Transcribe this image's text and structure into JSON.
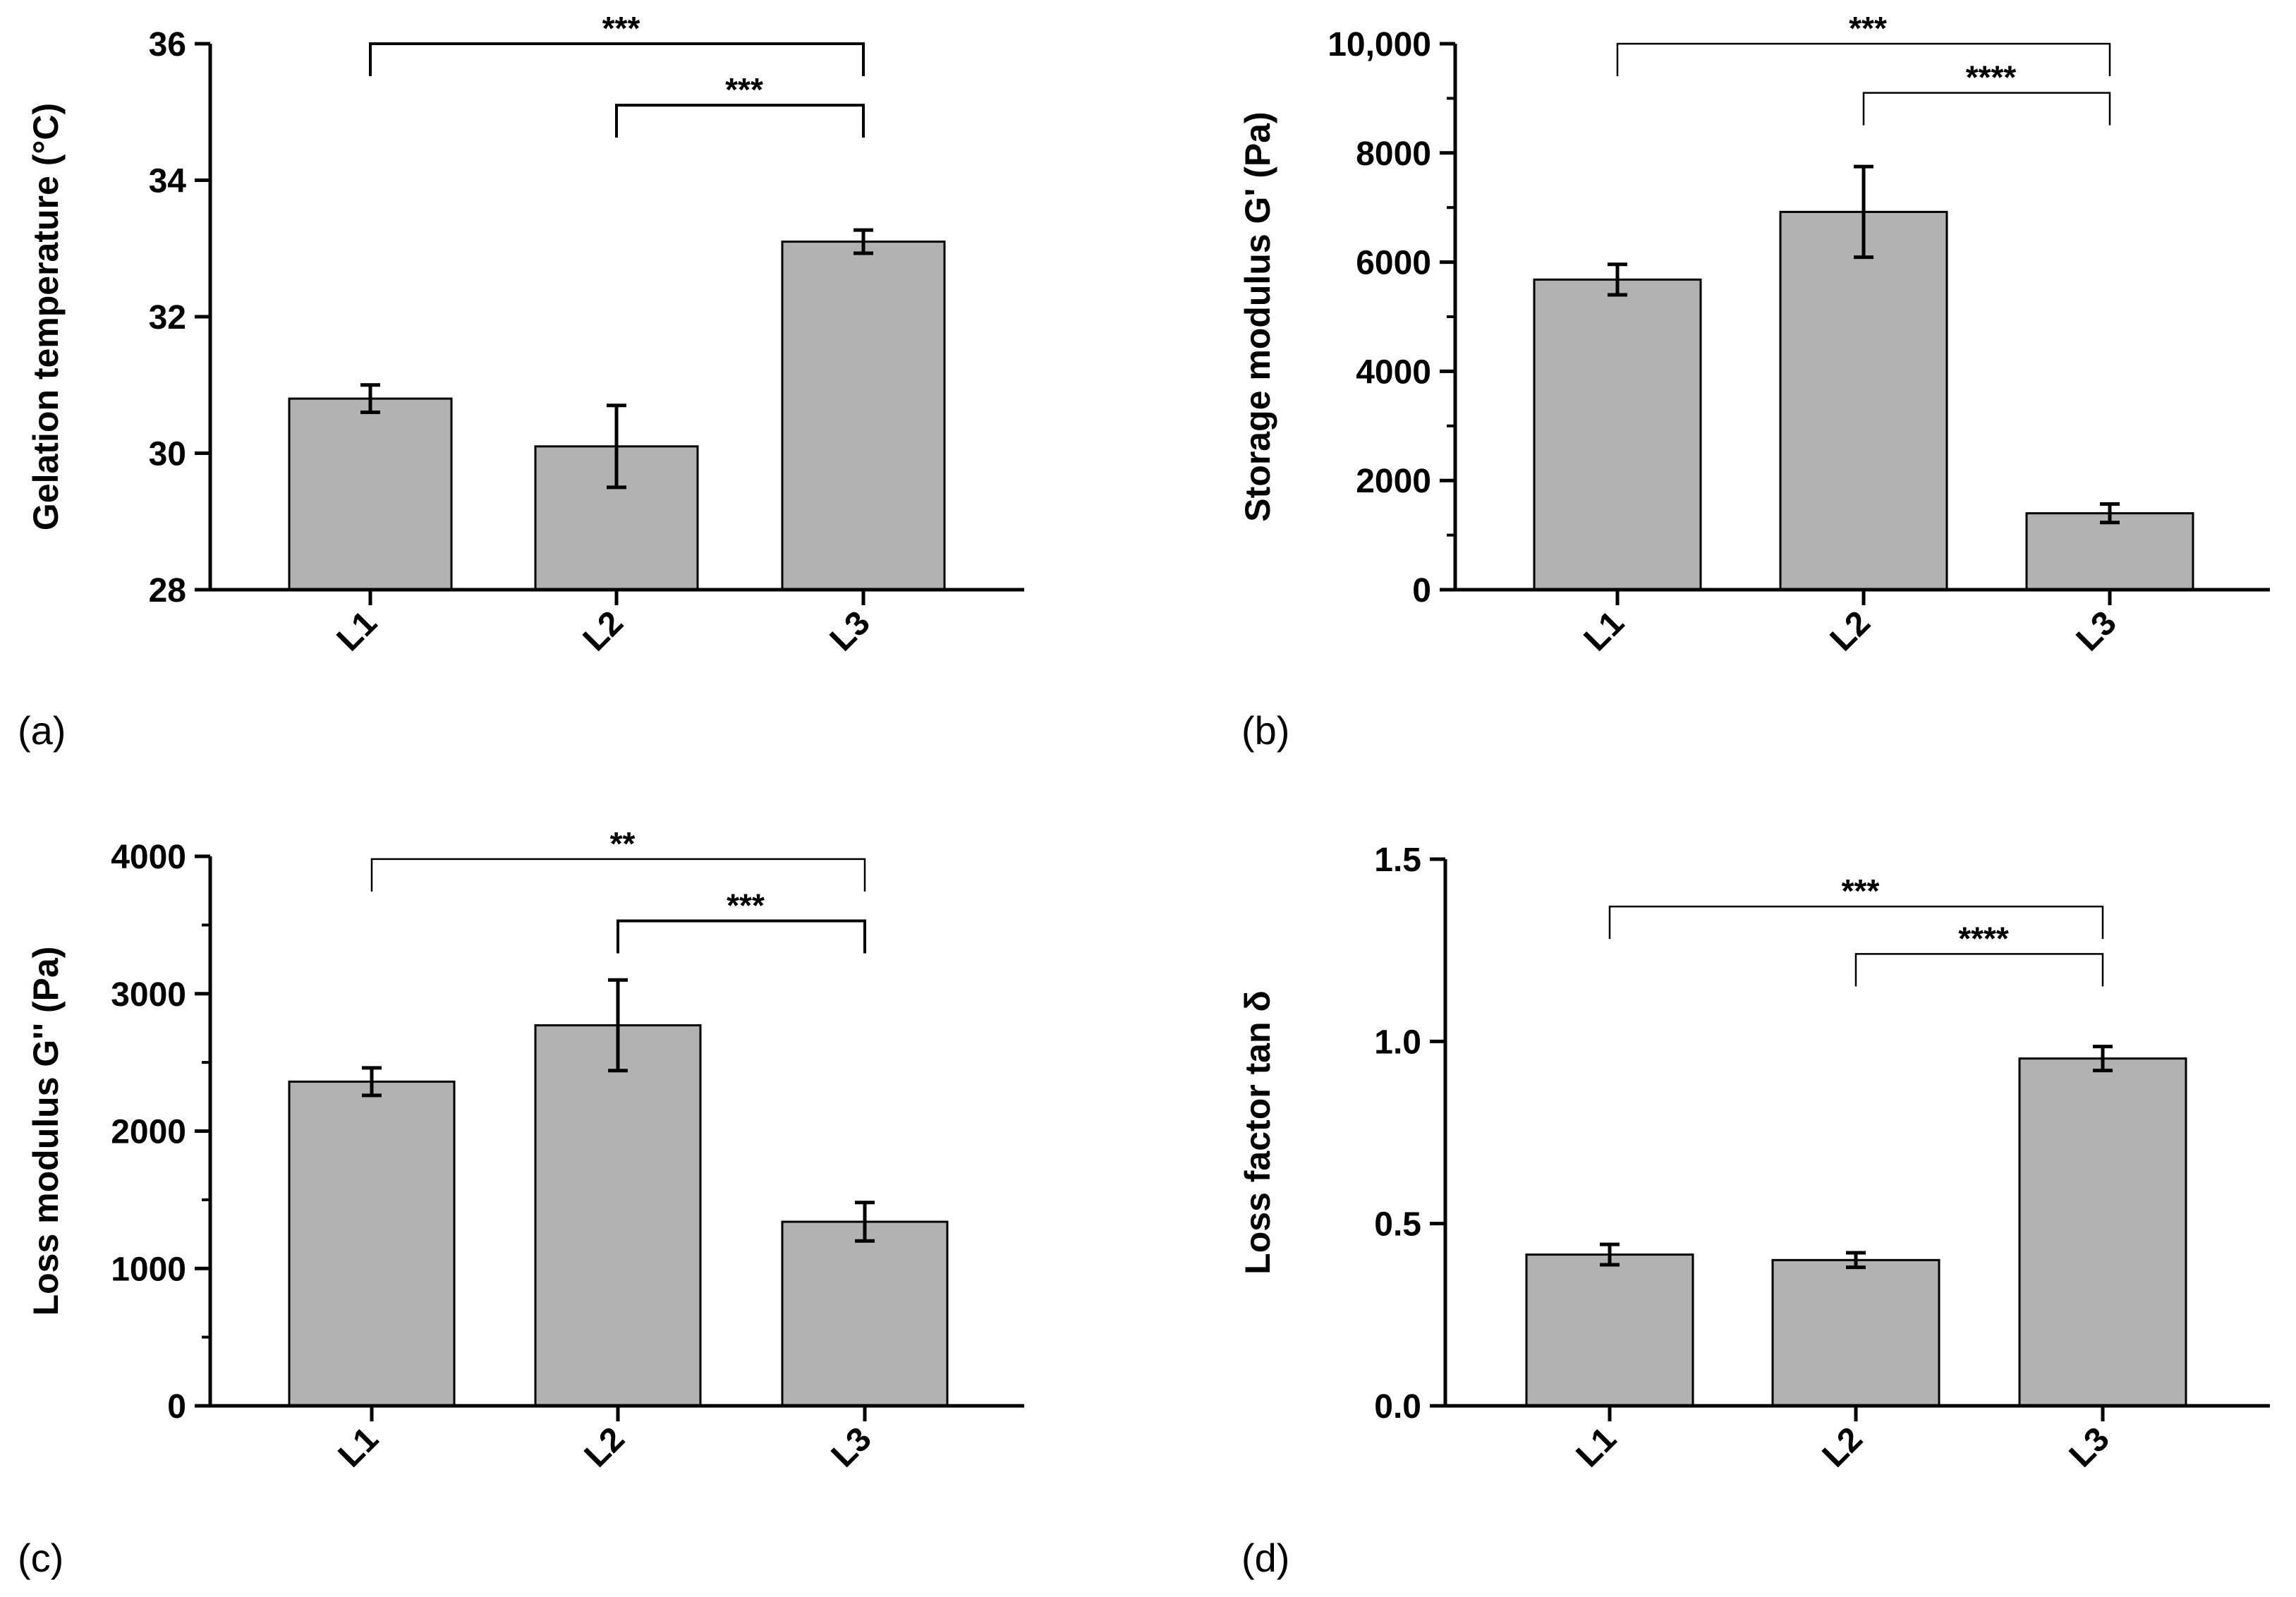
{
  "colors": {
    "bar": "#b2b2b2",
    "axis": "#000000",
    "background": "#ffffff"
  },
  "chart_data": [
    {
      "type": "bar",
      "panel_label": "(a)",
      "ylabel": "Gelation temperature (°C)",
      "categories": [
        "L1",
        "L2",
        "L3"
      ],
      "values": [
        30.8,
        30.1,
        33.1
      ],
      "errors": [
        0.2,
        0.6,
        0.17
      ],
      "ylim": [
        28,
        36
      ],
      "yticks": [
        28,
        30,
        32,
        34,
        36
      ],
      "ytick_labels": [
        "28",
        "30",
        "32",
        "34",
        "36"
      ],
      "minor_ticks": false,
      "significance": [
        {
          "from": "L1",
          "to": "L3",
          "level": 36,
          "label": "***"
        },
        {
          "from": "L2",
          "to": "L3",
          "level": 35.1,
          "label": "***"
        }
      ]
    },
    {
      "type": "bar",
      "panel_label": "(b)",
      "ylabel": "Storage modulus G' (Pa)",
      "categories": [
        "L1",
        "L2",
        "L3"
      ],
      "values": [
        5680,
        6920,
        1400
      ],
      "errors": [
        280,
        830,
        170
      ],
      "ylim": [
        0,
        10000
      ],
      "yticks": [
        0,
        2000,
        4000,
        6000,
        8000,
        10000
      ],
      "ytick_labels": [
        "0",
        "2000",
        "4000",
        "6000",
        "8000",
        "10,000"
      ],
      "minor_ticks": true,
      "significance": [
        {
          "from": "L1",
          "to": "L3",
          "level": 10000,
          "label": "***"
        },
        {
          "from": "L2",
          "to": "L3",
          "level": 9100,
          "label": "****"
        }
      ]
    },
    {
      "type": "bar",
      "panel_label": "(c)",
      "ylabel": "Loss modulus G'' (Pa)",
      "categories": [
        "L1",
        "L2",
        "L3"
      ],
      "values": [
        2360,
        2770,
        1340
      ],
      "errors": [
        100,
        330,
        140
      ],
      "ylim": [
        0,
        4000
      ],
      "yticks": [
        0,
        1000,
        2000,
        3000,
        4000
      ],
      "ytick_labels": [
        "0",
        "1000",
        "2000",
        "3000",
        "4000"
      ],
      "minor_ticks": true,
      "significance": [
        {
          "from": "L1",
          "to": "L3",
          "level": 3980,
          "label": "**"
        },
        {
          "from": "L2",
          "to": "L3",
          "level": 3530,
          "label": "***"
        }
      ]
    },
    {
      "type": "bar",
      "panel_label": "(d)",
      "ylabel": "Loss factor tan δ",
      "categories": [
        "L1",
        "L2",
        "L3"
      ],
      "values": [
        0.415,
        0.4,
        0.953
      ],
      "errors": [
        0.028,
        0.02,
        0.033
      ],
      "ylim": [
        0,
        1.5
      ],
      "yticks": [
        0,
        0.5,
        1.0,
        1.5
      ],
      "ytick_labels": [
        "0.0",
        "0.5",
        "1.0",
        "1.5"
      ],
      "minor_ticks": false,
      "significance": [
        {
          "from": "L1",
          "to": "L3",
          "level": 1.37,
          "label": "***"
        },
        {
          "from": "L2",
          "to": "L3",
          "level": 1.24,
          "label": "****"
        }
      ]
    }
  ]
}
